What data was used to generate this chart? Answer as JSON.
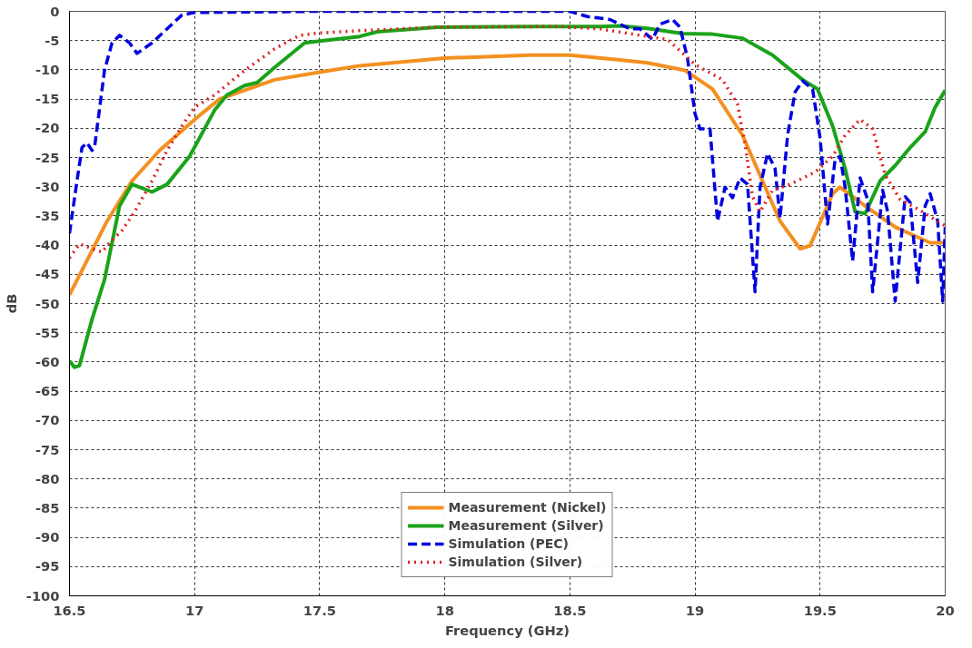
{
  "chart_data": {
    "type": "line",
    "xlabel": "Frequency (GHz)",
    "ylabel": "dB",
    "xlim": [
      16.5,
      20
    ],
    "ylim": [
      -100,
      0
    ],
    "xticks": [
      16.5,
      17,
      17.5,
      18,
      18.5,
      19,
      19.5,
      20
    ],
    "yticks": [
      -100,
      -95,
      -90,
      -85,
      -80,
      -75,
      -70,
      -65,
      -60,
      -55,
      -50,
      -45,
      -40,
      -35,
      -30,
      -25,
      -20,
      -15,
      -10,
      -5,
      0
    ],
    "grid": true,
    "legend": "bottom",
    "marker": "none",
    "series": [
      {
        "name": "Measurement (Nickel)",
        "color": "#f39020",
        "line_style": "solid",
        "x": [
          16.5,
          16.65,
          16.75,
          16.86,
          17.0,
          17.1,
          17.32,
          17.5,
          17.66,
          18.0,
          18.34,
          18.5,
          18.7,
          18.81,
          18.96,
          19.07,
          19.19,
          19.34,
          19.42,
          19.46,
          19.55,
          19.58,
          19.68,
          19.8,
          19.94,
          20.0
        ],
        "values": [
          -48.5,
          -35.9,
          -29,
          -23.8,
          -18.5,
          -15,
          -11.7,
          -10.4,
          -9.3,
          -8,
          -7.5,
          -7.5,
          -8.3,
          -8.8,
          -10.1,
          -13.3,
          -21.2,
          -35.9,
          -40.6,
          -40.1,
          -31.2,
          -30.1,
          -33.3,
          -36.9,
          -39.6,
          -39.6
        ]
      },
      {
        "name": "Measurement (Silver)",
        "color": "#1aa31a",
        "line_style": "solid",
        "x": [
          16.5,
          16.52,
          16.54,
          16.59,
          16.64,
          16.7,
          16.75,
          16.83,
          16.89,
          16.98,
          17.08,
          17.13,
          17.2,
          17.25,
          17.32,
          17.44,
          17.5,
          17.66,
          17.73,
          17.97,
          18.34,
          18.62,
          18.7,
          18.81,
          18.95,
          19.07,
          19.19,
          19.31,
          19.43,
          19.49,
          19.55,
          19.6,
          19.64,
          19.68,
          19.74,
          19.8,
          19.86,
          19.92,
          19.96,
          20.0
        ],
        "values": [
          -59.8,
          -60.9,
          -60.6,
          -52.7,
          -45.9,
          -33.3,
          -29.6,
          -30.9,
          -29.6,
          -24.8,
          -16.9,
          -14.3,
          -12.7,
          -12.2,
          -9.6,
          -5.4,
          -5.1,
          -4.3,
          -3.5,
          -2.7,
          -2.6,
          -2.6,
          -2.5,
          -2.9,
          -3.8,
          -3.9,
          -4.6,
          -7.5,
          -11.7,
          -13.3,
          -19.6,
          -26.9,
          -34.3,
          -34.6,
          -29,
          -26.4,
          -23.3,
          -20.6,
          -16.4,
          -13.5
        ]
      },
      {
        "name": "Simulation (PEC)",
        "color": "#0000e0",
        "line_style": "dashed",
        "x": [
          16.5,
          16.53,
          16.55,
          16.57,
          16.59,
          16.6,
          16.64,
          16.67,
          16.7,
          16.74,
          16.77,
          16.83,
          16.89,
          16.95,
          17.0,
          17.5,
          18.0,
          18.5,
          18.57,
          18.66,
          18.74,
          18.78,
          18.83,
          18.86,
          18.91,
          18.94,
          18.97,
          19.0,
          19.02,
          19.06,
          19.09,
          19.12,
          19.15,
          19.18,
          19.21,
          19.24,
          19.26,
          19.29,
          19.32,
          19.34,
          19.37,
          19.4,
          19.43,
          19.47,
          19.5,
          19.53,
          19.56,
          19.58,
          19.6,
          19.63,
          19.66,
          19.69,
          19.71,
          19.75,
          19.77,
          19.8,
          19.84,
          19.86,
          19.89,
          19.92,
          19.94,
          19.97,
          19.99,
          20.0
        ],
        "values": [
          -38,
          -29,
          -23.3,
          -22.5,
          -23.8,
          -23.3,
          -10.1,
          -5.4,
          -4.1,
          -5.4,
          -7.2,
          -5.4,
          -3,
          -0.6,
          -0.2,
          0,
          0,
          0,
          -0.9,
          -1.4,
          -3,
          -3,
          -4.8,
          -2.2,
          -1.4,
          -2.7,
          -8,
          -17.5,
          -20.1,
          -20.1,
          -35.9,
          -30.1,
          -31.9,
          -28.5,
          -29.6,
          -48,
          -30.1,
          -24.3,
          -26.9,
          -35.4,
          -21.2,
          -13.8,
          -11.9,
          -13.3,
          -21.7,
          -36.4,
          -25.3,
          -24.8,
          -30.1,
          -42.7,
          -28.5,
          -32.2,
          -48,
          -30.6,
          -34.3,
          -49.6,
          -31.7,
          -32.7,
          -46.4,
          -33.3,
          -31.2,
          -35.9,
          -49.6,
          -36.9
        ]
      },
      {
        "name": "Simulation (Silver)",
        "color": "#e02020",
        "line_style": "dotted",
        "x": [
          16.5,
          16.54,
          16.59,
          16.63,
          16.66,
          16.71,
          16.76,
          16.83,
          16.89,
          16.95,
          17.0,
          17.08,
          17.2,
          17.32,
          17.42,
          17.5,
          17.66,
          17.97,
          18.46,
          18.62,
          18.81,
          18.89,
          19.0,
          19.11,
          19.17,
          19.2,
          19.23,
          19.26,
          19.31,
          19.38,
          19.48,
          19.55,
          19.6,
          19.66,
          19.71,
          19.76,
          19.82,
          19.89,
          20.0
        ],
        "values": [
          -42.2,
          -39.8,
          -40.6,
          -41.2,
          -39.6,
          -37.5,
          -34.3,
          -29,
          -23.8,
          -19.6,
          -16.4,
          -14.3,
          -10.1,
          -6.4,
          -4.1,
          -3.7,
          -3.3,
          -2.7,
          -2.6,
          -3,
          -4.3,
          -4.8,
          -9.1,
          -11.7,
          -15.9,
          -22.7,
          -31.7,
          -34.3,
          -30.6,
          -29.6,
          -27.5,
          -24.8,
          -21.2,
          -18.5,
          -20.1,
          -28,
          -32.2,
          -33.8,
          -36.7
        ]
      }
    ]
  }
}
